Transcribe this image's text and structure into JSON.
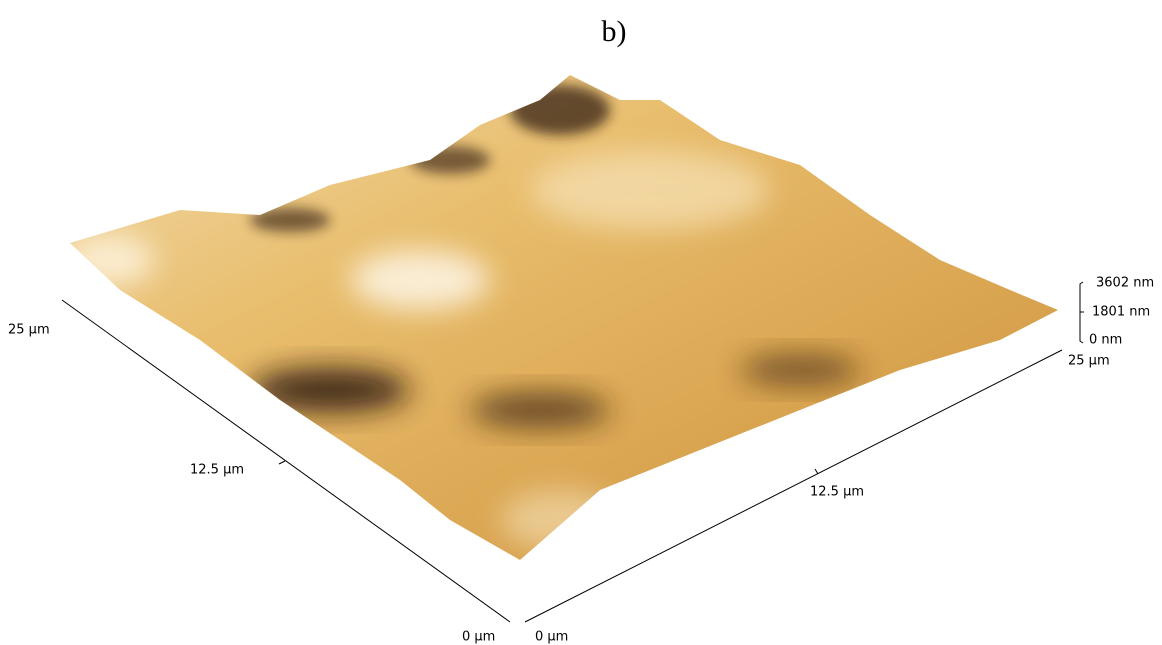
{
  "panel_label": "b)",
  "left_axis": {
    "ticks": [
      "25 µm",
      "12.5 µm",
      "0 µm"
    ]
  },
  "right_axis": {
    "ticks": [
      "0 µm",
      "12.5 µm",
      "25 µm"
    ]
  },
  "height_scale": {
    "ticks": [
      "3602 nm",
      "1801 nm",
      "0 nm"
    ]
  }
}
